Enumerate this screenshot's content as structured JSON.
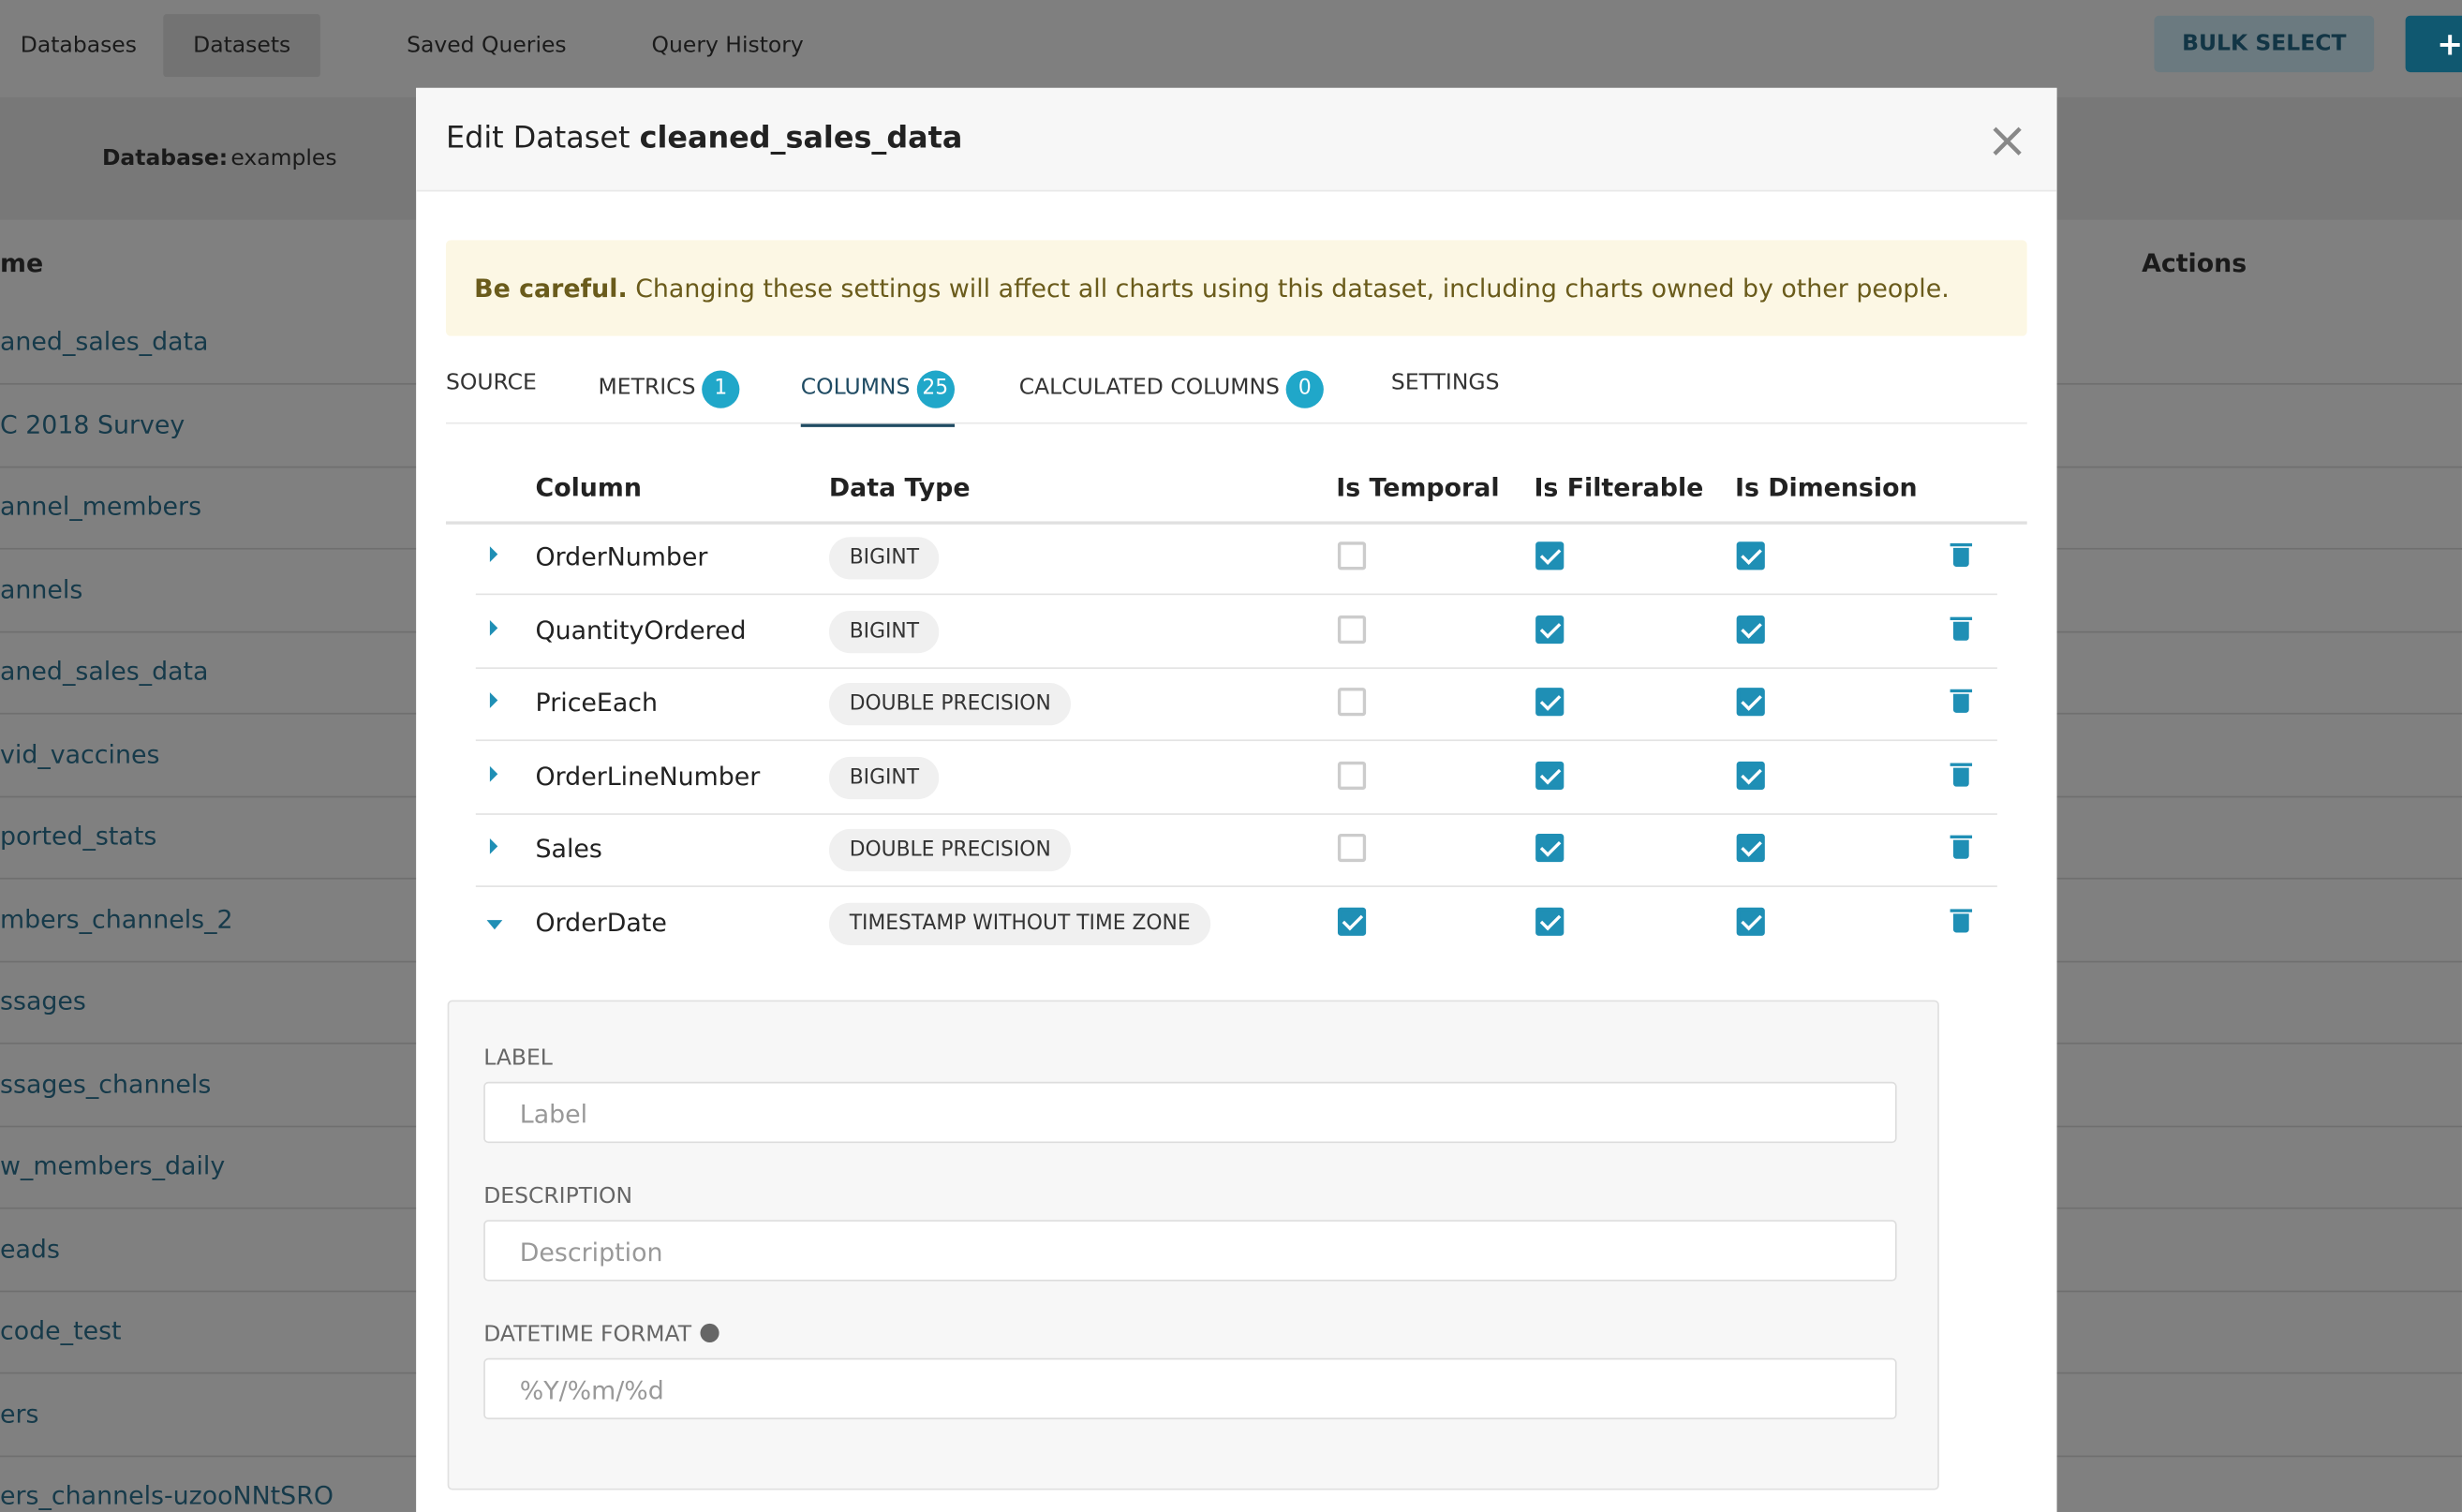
{
  "nav": {
    "tabs": [
      "Databases",
      "Datasets",
      "Saved Queries",
      "Query History"
    ],
    "active": 1,
    "bulk_select": "BULK SELECT",
    "add_icon": "+"
  },
  "filter": {
    "label": "Database:",
    "value": "examples"
  },
  "list": {
    "header_name": "me",
    "header_actions": "Actions",
    "items": [
      "aned_sales_data",
      "C 2018 Survey",
      "annel_members",
      "annels",
      "aned_sales_data",
      "vid_vaccines",
      "ported_stats",
      "mbers_channels_2",
      "ssages",
      "ssages_channels",
      "w_members_daily",
      "eads",
      "code_test",
      "ers",
      "ers_channels-uzooNNtSRO"
    ]
  },
  "modal": {
    "title_prefix": "Edit Dataset",
    "title_name": "cleaned_sales_data",
    "close": "×",
    "warning": {
      "strong": "Be careful.",
      "text": "Changing these settings will affect all charts using this dataset, including charts owned by other people."
    },
    "tabs": [
      {
        "label": "SOURCE"
      },
      {
        "label": "METRICS",
        "count": "1"
      },
      {
        "label": "COLUMNS",
        "count": "25"
      },
      {
        "label": "CALCULATED COLUMNS",
        "count": "0"
      },
      {
        "label": "SETTINGS"
      }
    ],
    "active_tab": 2,
    "table": {
      "headers": [
        "Column",
        "Data Type",
        "Is Temporal",
        "Is Filterable",
        "Is Dimension"
      ],
      "rows": [
        {
          "name": "OrderNumber",
          "type": "BIGINT",
          "temporal": false,
          "filterable": true,
          "dimension": true,
          "expanded": false
        },
        {
          "name": "QuantityOrdered",
          "type": "BIGINT",
          "temporal": false,
          "filterable": true,
          "dimension": true,
          "expanded": false
        },
        {
          "name": "PriceEach",
          "type": "DOUBLE PRECISION",
          "temporal": false,
          "filterable": true,
          "dimension": true,
          "expanded": false
        },
        {
          "name": "OrderLineNumber",
          "type": "BIGINT",
          "temporal": false,
          "filterable": true,
          "dimension": true,
          "expanded": false
        },
        {
          "name": "Sales",
          "type": "DOUBLE PRECISION",
          "temporal": false,
          "filterable": true,
          "dimension": true,
          "expanded": false
        },
        {
          "name": "OrderDate",
          "type": "TIMESTAMP WITHOUT TIME ZONE",
          "temporal": true,
          "filterable": true,
          "dimension": true,
          "expanded": true
        }
      ]
    },
    "details": {
      "fields": [
        {
          "label": "LABEL",
          "placeholder": "Label"
        },
        {
          "label": "DESCRIPTION",
          "placeholder": "Description"
        },
        {
          "label": "DATETIME FORMAT",
          "placeholder": "%Y/%m/%d",
          "info": true
        }
      ]
    }
  }
}
